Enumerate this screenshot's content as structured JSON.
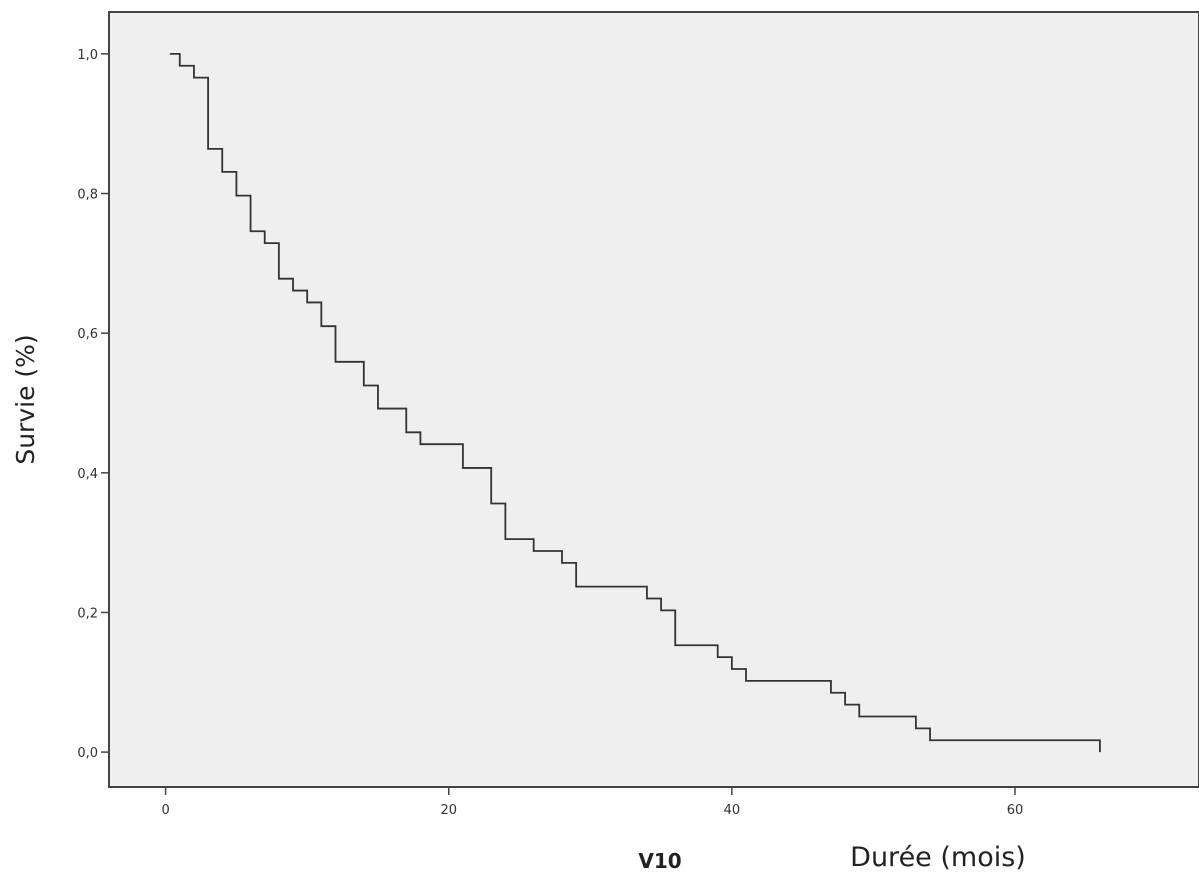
{
  "chart_data": {
    "type": "line",
    "step": true,
    "title": "",
    "xlabel": "Durée (mois)",
    "ylabel": "Survie (%)",
    "variable_label": "V10",
    "xlim": [
      -4,
      73
    ],
    "ylim": [
      -0.05,
      1.06
    ],
    "x_ticks": [
      0,
      20,
      40,
      60
    ],
    "x_tick_labels": [
      "0",
      "20",
      "40",
      "60"
    ],
    "y_ticks": [
      0.0,
      0.2,
      0.4,
      0.6,
      0.8,
      1.0
    ],
    "y_tick_labels": [
      "0,0",
      "0,2",
      "0,4",
      "0,6",
      "0,8",
      "1,0"
    ],
    "grid": false,
    "colors": {
      "plot_background": "#efefef",
      "line": "#333333",
      "axes": "#444444"
    },
    "series": [
      {
        "steps": [
          [
            0.3,
            1.0
          ],
          [
            1.0,
            0.983
          ],
          [
            2.0,
            0.966
          ],
          [
            3.0,
            0.864
          ],
          [
            4.0,
            0.831
          ],
          [
            5.0,
            0.797
          ],
          [
            6.0,
            0.746
          ],
          [
            7.0,
            0.729
          ],
          [
            8.0,
            0.678
          ],
          [
            9.0,
            0.661
          ],
          [
            10.0,
            0.644
          ],
          [
            11.0,
            0.61
          ],
          [
            12.0,
            0.559
          ],
          [
            14.0,
            0.525
          ],
          [
            15.0,
            0.492
          ],
          [
            17.0,
            0.458
          ],
          [
            18.0,
            0.441
          ],
          [
            21.0,
            0.407
          ],
          [
            23.0,
            0.356
          ],
          [
            24.0,
            0.305
          ],
          [
            26.0,
            0.288
          ],
          [
            28.0,
            0.271
          ],
          [
            29.0,
            0.237
          ],
          [
            34.0,
            0.22
          ],
          [
            35.0,
            0.203
          ],
          [
            36.0,
            0.153
          ],
          [
            39.0,
            0.136
          ],
          [
            40.0,
            0.119
          ],
          [
            41.0,
            0.102
          ],
          [
            47.0,
            0.085
          ],
          [
            48.0,
            0.068
          ],
          [
            49.0,
            0.051
          ],
          [
            53.0,
            0.034
          ],
          [
            54.0,
            0.017
          ],
          [
            66.0,
            0.0
          ]
        ],
        "end_x": 66.0
      }
    ]
  }
}
